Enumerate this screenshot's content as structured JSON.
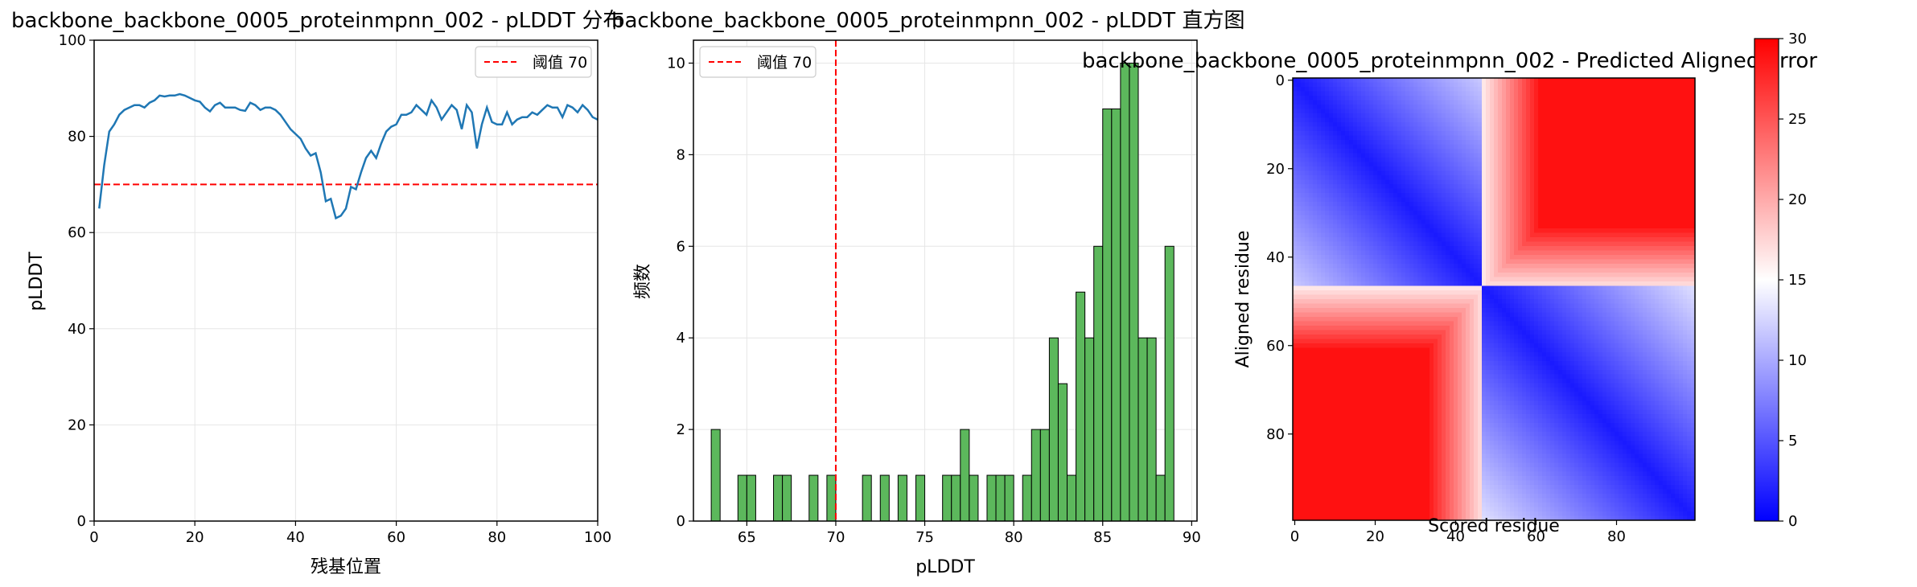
{
  "colors": {
    "line": "#1f77b4",
    "threshold": "#ff0000",
    "bar_fill": "#5cb85c",
    "bar_edge": "#000000"
  },
  "chart_data": [
    {
      "type": "line",
      "title": "backbone_backbone_0005_proteinmpnn_002 - pLDDT 分布",
      "xlabel": "残基位置",
      "ylabel": "pLDDT",
      "xlim": [
        0,
        100
      ],
      "ylim": [
        0,
        100
      ],
      "xticks": [
        "0",
        "20",
        "40",
        "60",
        "80",
        "100"
      ],
      "yticks": [
        "0",
        "20",
        "40",
        "60",
        "80",
        "100"
      ],
      "grid": true,
      "legend": {
        "position": "top-right",
        "label": "阈值 70"
      },
      "threshold": 70,
      "x": [
        1,
        2,
        3,
        4,
        5,
        6,
        7,
        8,
        9,
        10,
        11,
        12,
        13,
        14,
        15,
        16,
        17,
        18,
        19,
        20,
        21,
        22,
        23,
        24,
        25,
        26,
        27,
        28,
        29,
        30,
        31,
        32,
        33,
        34,
        35,
        36,
        37,
        38,
        39,
        40,
        41,
        42,
        43,
        44,
        45,
        46,
        47,
        48,
        49,
        50,
        51,
        52,
        53,
        54,
        55,
        56,
        57,
        58,
        59,
        60,
        61,
        62,
        63,
        64,
        65,
        66,
        67,
        68,
        69,
        70,
        71,
        72,
        73,
        74,
        75,
        76,
        77,
        78,
        79,
        80,
        81,
        82,
        83,
        84,
        85,
        86,
        87,
        88,
        89,
        90,
        91,
        92,
        93,
        94,
        95,
        96,
        97,
        98,
        99,
        100
      ],
      "values": [
        65,
        74,
        81,
        82.5,
        84.5,
        85.5,
        86,
        86.5,
        86.5,
        86,
        87,
        87.5,
        88.5,
        88.3,
        88.5,
        88.5,
        88.8,
        88.5,
        88,
        87.5,
        87.2,
        86,
        85.2,
        86.5,
        87,
        86,
        86,
        86,
        85.5,
        85.3,
        87,
        86.5,
        85.5,
        86,
        86,
        85.5,
        84.5,
        83,
        81.5,
        80.5,
        79.5,
        77.5,
        76,
        76.5,
        72.5,
        66.5,
        67,
        63,
        63.5,
        65,
        69.5,
        69,
        72.5,
        75.5,
        77,
        75.5,
        78.5,
        81,
        82,
        82.5,
        84.5,
        84.5,
        85,
        86.5,
        85.5,
        84.5,
        87.5,
        86,
        83.5,
        85,
        86.5,
        85.5,
        81.5,
        86.5,
        85,
        77.5,
        82.5,
        86,
        83,
        82.5,
        82.5,
        85,
        82.5,
        83.5,
        84,
        84,
        85,
        84.5,
        85.5,
        86.5,
        86,
        86,
        84,
        86.5,
        86,
        85,
        86.5,
        85.5,
        84,
        83.5
      ]
    },
    {
      "type": "bar",
      "title": "backbone_backbone_0005_proteinmpnn_002 - pLDDT 直方图",
      "xlabel": "pLDDT",
      "ylabel": "频数",
      "xlim": [
        62,
        90.3
      ],
      "ylim": [
        0,
        10.5
      ],
      "xticks": [
        "65",
        "70",
        "75",
        "80",
        "85",
        "90"
      ],
      "yticks": [
        "0",
        "2",
        "4",
        "6",
        "8",
        "10"
      ],
      "grid": true,
      "legend": {
        "position": "top-left",
        "label": "阈值 70"
      },
      "threshold": 70,
      "bin_start": 63,
      "bin_width": 0.5,
      "values": [
        2,
        0,
        0,
        1,
        1,
        0,
        0,
        1,
        1,
        0,
        0,
        1,
        0,
        1,
        0,
        0,
        0,
        1,
        0,
        1,
        0,
        1,
        0,
        1,
        0,
        0,
        1,
        1,
        2,
        1,
        0,
        1,
        1,
        1,
        0,
        1,
        2,
        2,
        4,
        3,
        1,
        5,
        4,
        6,
        9,
        9,
        10,
        10,
        4,
        4,
        1,
        6
      ]
    },
    {
      "type": "heatmap",
      "title": "backbone_backbone_0005_proteinmpnn_002 - Predicted Aligned Error",
      "xlabel": "Scored residue",
      "ylabel": "Aligned residue",
      "xticks": [
        "0",
        "20",
        "40",
        "60",
        "80"
      ],
      "yticks": [
        "0",
        "20",
        "40",
        "60",
        "80"
      ],
      "size": 100,
      "colorbar": {
        "min": 0,
        "max": 30,
        "ticks": [
          "0",
          "5",
          "10",
          "15",
          "20",
          "25",
          "30"
        ],
        "colormap": "bwr"
      }
    }
  ]
}
